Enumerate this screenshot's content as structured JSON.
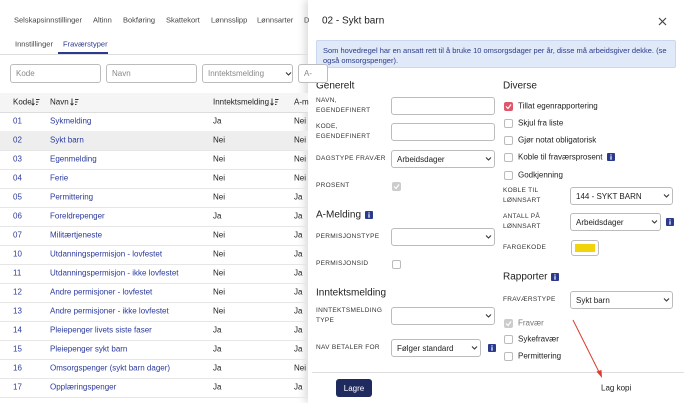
{
  "nav": {
    "tabs": [
      "Selskapsinnstillinger",
      "Altinn",
      "Bokføring",
      "Skattekort",
      "Lønnsslipp",
      "Lønnsarter",
      "D"
    ]
  },
  "subtabs": [
    "Innstillinger",
    "Fraværstyper"
  ],
  "filters": [
    "Kode",
    "Navn",
    "Inntektsmelding",
    "A-"
  ],
  "table": {
    "headers": [
      "Kode",
      "Navn",
      "Inntektsmelding",
      "A-m"
    ],
    "rows": [
      [
        "01",
        "Sykmelding",
        "Ja",
        "Nei"
      ],
      [
        "02",
        "Sykt barn",
        "Nei",
        "Nei"
      ],
      [
        "03",
        "Egenmelding",
        "Nei",
        "Nei"
      ],
      [
        "04",
        "Ferie",
        "Nei",
        "Nei"
      ],
      [
        "05",
        "Permittering",
        "Nei",
        "Ja"
      ],
      [
        "06",
        "Foreldrepenger",
        "Ja",
        "Ja"
      ],
      [
        "07",
        "Militærtjeneste",
        "Nei",
        "Ja"
      ],
      [
        "10",
        "Utdanningspermisjon - lovfestet",
        "Nei",
        "Ja"
      ],
      [
        "11",
        "Utdanningspermisjon - ikke lovfestet",
        "Nei",
        "Ja"
      ],
      [
        "12",
        "Andre permisjoner - lovfestet",
        "Nei",
        "Ja"
      ],
      [
        "13",
        "Andre permisjoner - ikke lovfestet",
        "Nei",
        "Ja"
      ],
      [
        "14",
        "Pleiepenger livets siste faser",
        "Ja",
        "Ja"
      ],
      [
        "15",
        "Pleiepenger sykt barn",
        "Ja",
        "Ja"
      ],
      [
        "16",
        "Omsorgspenger (sykt barn dager)",
        "Ja",
        "Nei"
      ],
      [
        "17",
        "Opplæringspenger",
        "Ja",
        "Ja"
      ]
    ]
  },
  "panel": {
    "title": "02 - Sykt barn",
    "info": "Som hovedregel har en ansatt rett til å bruke 10 omsorgsdager per år, disse må arbeidsgiver dekke. (se også omsorgspenger).",
    "generelt": {
      "heading": "Generelt",
      "fields": [
        {
          "label": "NAVN, EGENDEFINERT"
        },
        {
          "label": "KODE, EGENDEFINERT"
        },
        {
          "label": "DAGSTYPE FRAVÆR",
          "value": "Arbeidsdager"
        },
        {
          "label": "PROSENT",
          "checked": true
        }
      ]
    },
    "amelding": {
      "heading": "A-Melding",
      "fields": [
        {
          "label": "PERMISJONSTYPE",
          "value": ""
        },
        {
          "label": "PERMISJONSID",
          "checked": false
        }
      ]
    },
    "inntektsmelding": {
      "heading": "Inntektsmelding",
      "fields": [
        {
          "label": "INNTEKTSMELDING TYPE",
          "value": ""
        },
        {
          "label": "NAV BETALER FOR",
          "value": "Følger standard"
        }
      ]
    },
    "diverse": {
      "heading": "Diverse",
      "checks": [
        {
          "label": "Tillat egenrapportering",
          "checked": true
        },
        {
          "label": "Skjul fra liste",
          "checked": false
        },
        {
          "label": "Gjør notat obligatorisk",
          "checked": false
        },
        {
          "label": "Koble til fraværsprosent",
          "checked": false
        },
        {
          "label": "Godkjenning",
          "checked": false
        }
      ],
      "fields": [
        {
          "label": "KOBLE TIL LØNNSART",
          "value": "144 - SYKT BARN"
        },
        {
          "label": "ANTALL PÅ LØNNSART",
          "value": "Arbeidsdager"
        },
        {
          "label": "FARGEKODE",
          "color": "#f2d40c"
        }
      ]
    },
    "rapporter": {
      "heading": "Rapporter",
      "fields": [
        {
          "label": "FRAVÆRSTYPE",
          "value": "Sykt barn"
        }
      ],
      "checks": [
        {
          "label": "Fravær",
          "checked": true
        },
        {
          "label": "Sykefravær",
          "checked": false
        },
        {
          "label": "Permittering",
          "checked": false
        }
      ]
    },
    "copy": "Lag kopi",
    "save": "Lagre"
  }
}
